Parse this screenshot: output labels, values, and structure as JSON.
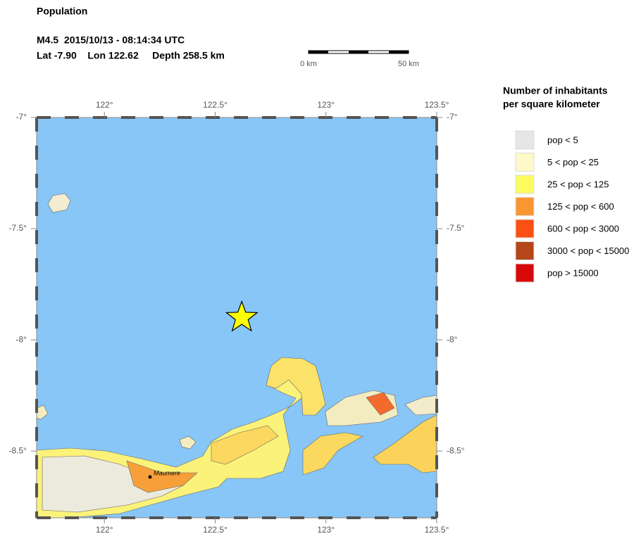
{
  "header": {
    "title": "Population",
    "event": "M4.5  2015/10/13 - 08:14:34 UTC",
    "location": "Lat -7.90    Lon 122.62     Depth 258.5 km"
  },
  "scale_bar": {
    "labels": [
      "0 km",
      "50 km"
    ]
  },
  "map": {
    "xlim": [
      121.694,
      123.5
    ],
    "ylim": [
      -8.8,
      -7
    ],
    "xticks": [
      {
        "value": 122,
        "label": "122°"
      },
      {
        "value": 122.5,
        "label": "122.5°"
      },
      {
        "value": 123,
        "label": "123°"
      },
      {
        "value": 123.5,
        "label": "123.5°"
      }
    ],
    "yticks": [
      {
        "value": -7,
        "label": "-7°"
      },
      {
        "value": -7.5,
        "label": "-7.5°"
      },
      {
        "value": -8,
        "label": "-8°"
      },
      {
        "value": -8.5,
        "label": "-8.5°"
      }
    ],
    "water_color": "#87c6f7",
    "epicenter": {
      "lon": 122.62,
      "lat": -7.9
    },
    "epicenter_color": "#ffff00",
    "place_label": "Maumere"
  },
  "legend": {
    "title": [
      "Number of inhabitants",
      "per square kilometer"
    ],
    "items": [
      {
        "label": "pop < 5",
        "color": "#e6e6e6"
      },
      {
        "label": "5 < pop < 25",
        "color": "#fdf9c8"
      },
      {
        "label": "25 < pop < 125",
        "color": "#fbfb5f"
      },
      {
        "label": "125 < pop < 600",
        "color": "#fa9632"
      },
      {
        "label": "600 < pop < 3000",
        "color": "#fa5014"
      },
      {
        "label": "3000 < pop < 15000",
        "color": "#b4461a"
      },
      {
        "label": "pop > 15000",
        "color": "#d70a0a"
      }
    ]
  }
}
